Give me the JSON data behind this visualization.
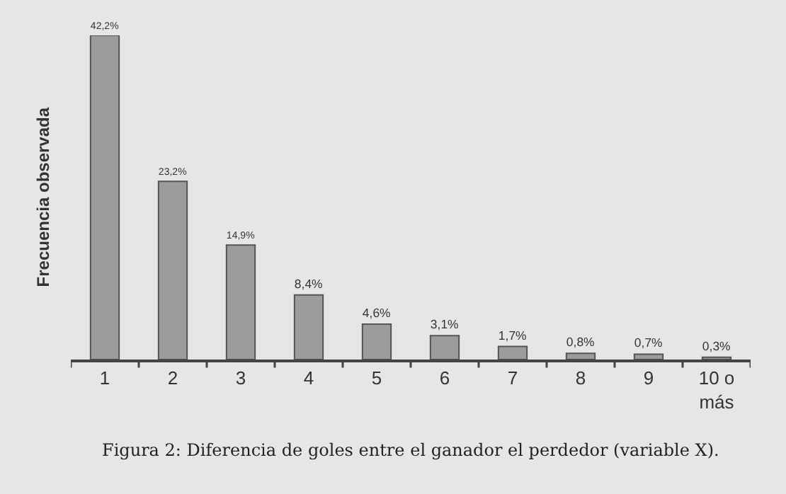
{
  "chart_data": {
    "type": "bar",
    "ylabel": "Frecuencia observada",
    "categories": [
      "1",
      "2",
      "3",
      "4",
      "5",
      "6",
      "7",
      "8",
      "9",
      "10 o más"
    ],
    "values": [
      42.2,
      23.2,
      14.9,
      8.4,
      4.6,
      3.1,
      1.7,
      0.8,
      0.7,
      0.3
    ],
    "value_labels": [
      "42,2%",
      "23,2%",
      "14,9%",
      "8,4%",
      "4,6%",
      "3,1%",
      "1,7%",
      "0,8%",
      "0,7%",
      "0,3%"
    ],
    "color": "#9c9c9c",
    "ylim": [
      0,
      42.2
    ],
    "grid": false,
    "legend": false,
    "annotations": [
      "Figura 2: Diferencia de goles entre el ganador el perdedor (variable X)."
    ]
  }
}
